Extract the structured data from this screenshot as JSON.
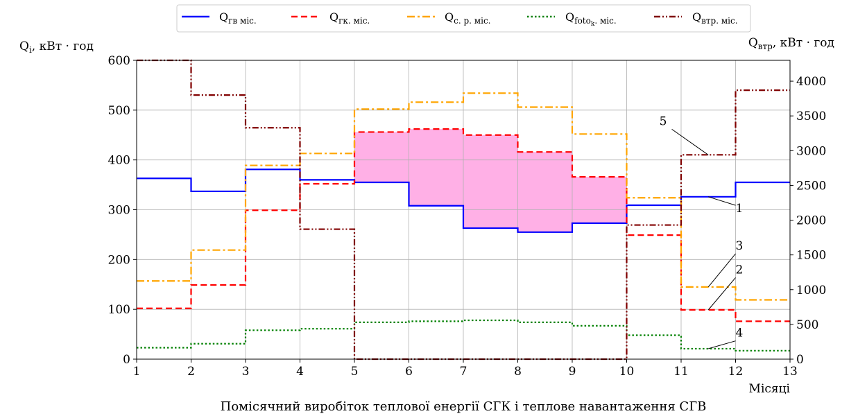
{
  "chart_data": {
    "type": "line",
    "step": "post",
    "caption": "Помісячний виробіток теплової енергії СГК і теплове навантаження СГВ",
    "x_label": "Місяці",
    "xlim": [
      1,
      13
    ],
    "x_ticks": [
      1,
      2,
      3,
      4,
      5,
      6,
      7,
      8,
      9,
      10,
      11,
      12,
      13
    ],
    "y_left": {
      "label_main": "Q",
      "label_sub": "i",
      "label_unit": ", кВт · год",
      "ylim": [
        0,
        600
      ],
      "ticks": [
        0,
        100,
        200,
        300,
        400,
        500,
        600
      ]
    },
    "y_right": {
      "label_main": "Q",
      "label_sub": "втр",
      "label_unit": ", кВт · год",
      "ylim": [
        0,
        4300
      ],
      "ticks": [
        0,
        500,
        1000,
        1500,
        2000,
        2500,
        3000,
        3500,
        4000
      ]
    },
    "grid": true,
    "legend_position": "top-center",
    "fill_between": {
      "upper_series": 1,
      "lower_series": 0,
      "x_from": 5,
      "x_to": 10,
      "color": "#ffb0e6"
    },
    "x": [
      1,
      2,
      3,
      4,
      5,
      6,
      7,
      8,
      9,
      10,
      11,
      12,
      13
    ],
    "series": [
      {
        "name_main": "Q",
        "name_sub": "гв міс.",
        "color": "#0000ff",
        "style": "solid",
        "axis": "left",
        "values": [
          363,
          337,
          381,
          360,
          355,
          308,
          263,
          255,
          273,
          309,
          326,
          355,
          355
        ]
      },
      {
        "name_main": "Q",
        "name_sub": "гк. міс.",
        "color": "#ff0000",
        "style": "dashed",
        "axis": "left",
        "values": [
          102,
          149,
          299,
          352,
          456,
          462,
          450,
          416,
          366,
          249,
          99,
          76,
          76
        ]
      },
      {
        "name_main": "Q",
        "name_sub": "с. р. міс.",
        "color": "#ffa500",
        "style": "dashdot",
        "axis": "left",
        "values": [
          157,
          219,
          389,
          413,
          502,
          516,
          534,
          506,
          452,
          324,
          145,
          119,
          119
        ]
      },
      {
        "name_main": "Q",
        "name_sub": "foto",
        "name_subsub": "k",
        "name_suffix": ". міс.",
        "color": "#008000",
        "style": "dotted",
        "axis": "left",
        "values": [
          23,
          31,
          58,
          61,
          74,
          76,
          78,
          74,
          67,
          48,
          21,
          17,
          17
        ]
      },
      {
        "name_main": "Q",
        "name_sub": "втр. міс.",
        "color": "#800000",
        "style": "dashdotdot",
        "axis": "right",
        "values": [
          4300,
          3800,
          3330,
          1870,
          0,
          0,
          0,
          0,
          0,
          1930,
          2940,
          3870,
          3870
        ]
      }
    ],
    "annotations": [
      {
        "text": "1",
        "x": 12,
        "y": 295,
        "target_x": 11.5,
        "target_y": 326
      },
      {
        "text": "2",
        "x": 12,
        "y": 172,
        "target_x": 11.5,
        "target_y": 99
      },
      {
        "text": "3",
        "x": 12,
        "y": 220,
        "target_x": 11.5,
        "target_y": 145
      },
      {
        "text": "4",
        "x": 12,
        "y": 45,
        "target_x": 11.5,
        "target_y": 21
      },
      {
        "text": "5",
        "x": 10.6,
        "y": 470,
        "target_x": 11.5,
        "target_y": 410
      }
    ]
  }
}
